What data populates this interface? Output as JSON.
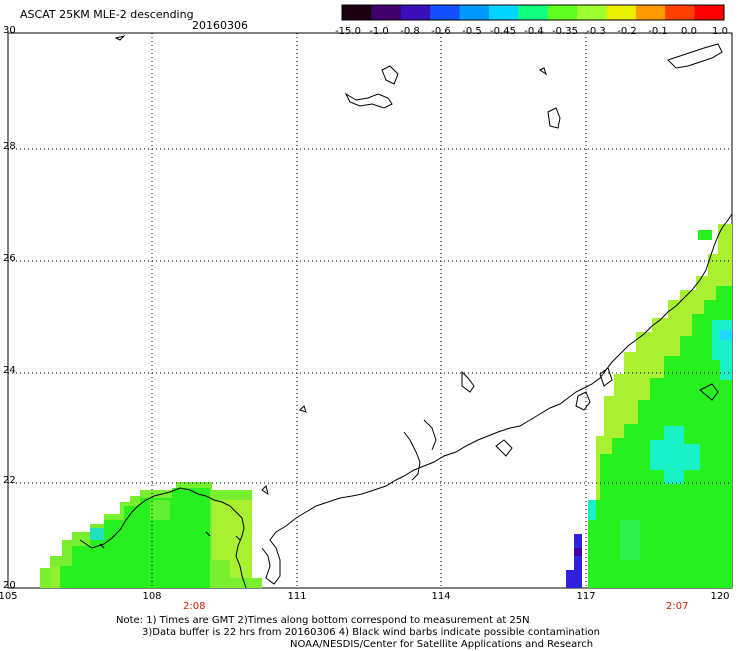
{
  "header": {
    "title": "ASCAT 25KM MLE-2 descending",
    "date": "20160306"
  },
  "colorbar": {
    "labels": [
      "-15.0",
      "-1.0",
      "-0.8",
      "-0.6",
      "-0.5",
      "-0.45",
      "-0.4",
      "-0.35",
      "-0.3",
      "-0.2",
      "-0.1",
      "0.0",
      "1.0"
    ],
    "colors": [
      "#1a0010",
      "#40006a",
      "#3a10b8",
      "#1450ff",
      "#0099ff",
      "#00d4ff",
      "#10ff80",
      "#60ff20",
      "#a0ff30",
      "#e8f000",
      "#ff9a00",
      "#ff4000",
      "#ff0000"
    ]
  },
  "axes": {
    "y_ticks": [
      "30",
      "28",
      "26",
      "24",
      "22",
      "20"
    ],
    "x_ticks": [
      "105",
      "108",
      "111",
      "114",
      "117",
      "120"
    ]
  },
  "times": {
    "left": "2:08",
    "right": "2:07"
  },
  "footer": {
    "line1": "Note: 1) Times are GMT 2)Times along bottom correspond to measurement at 25N",
    "line2": "3)Data buffer is 22 hrs from 20160306 4) Black wind barbs indicate possible contamination",
    "line3": "NOAA/NESDIS/Center for Satellite Applications and Research"
  },
  "colors": {
    "swath_green": "#28f020",
    "swath_lime": "#a8f030",
    "swath_cyan": "#18f0c8",
    "swath_blue": "#3020e0"
  }
}
